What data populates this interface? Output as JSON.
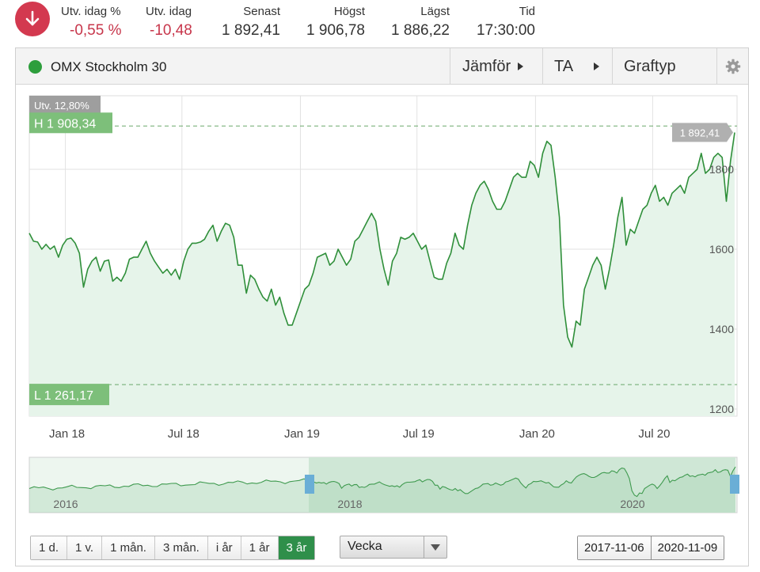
{
  "summary": {
    "change_pct_label": "Utv. idag %",
    "change_pct_value": "-0,55 %",
    "change_label": "Utv. idag",
    "change_value": "-10,48",
    "last_label": "Senast",
    "last_value": "1 892,41",
    "high_label": "Högst",
    "high_value": "1 906,78",
    "low_label": "Lägst",
    "low_value": "1 886,22",
    "time_label": "Tid",
    "time_value": "17:30:00",
    "colors": {
      "negative": "#c7364b",
      "badge": "#d3394f"
    },
    "icon": "arrow-down-icon"
  },
  "panel": {
    "instrument": "OMX Stockholm 30",
    "compare_label": "Jämför",
    "ta_label": "TA",
    "charttype_label": "Graftyp",
    "settings_icon": "gear-icon"
  },
  "chart_data": {
    "type": "area",
    "x_start": "2017-11-06",
    "x_end": "2020-11-09",
    "x_tick_labels": [
      "Jan 18",
      "Jul 18",
      "Jan 19",
      "Jul 19",
      "Jan 20",
      "Jul 20"
    ],
    "y_tick_labels": [
      "1800",
      "1600",
      "1400",
      "1200"
    ],
    "y_ticks": [
      1800,
      1600,
      1400,
      1200
    ],
    "ylim": [
      1200,
      2000
    ],
    "grid": true,
    "change_badge": "Utv. 12,80%",
    "high_line": {
      "value": 1908.34,
      "label": "H 1 908,34"
    },
    "low_line": {
      "value": 1261.17,
      "label": "L 1 261,17"
    },
    "last_badge": {
      "value": 1892.41,
      "label": "1 892,41"
    },
    "colors": {
      "line": "#2f8f3a",
      "fill": "#e6f4ea",
      "badge_green": "#7dbf7a",
      "badge_gray": "#b0b0b0"
    },
    "series": [
      {
        "values": [
          1640,
          1620,
          1618,
          1600,
          1612,
          1600,
          1608,
          1580,
          1610,
          1625,
          1628,
          1615,
          1590,
          1505,
          1550,
          1570,
          1580,
          1545,
          1570,
          1573,
          1520,
          1530,
          1520,
          1540,
          1575,
          1580,
          1580,
          1600,
          1620,
          1590,
          1570,
          1555,
          1540,
          1550,
          1535,
          1550,
          1525,
          1570,
          1600,
          1615,
          1615,
          1618,
          1625,
          1645,
          1660,
          1620,
          1645,
          1665,
          1660,
          1630,
          1560,
          1560,
          1490,
          1535,
          1525,
          1500,
          1480,
          1470,
          1500,
          1460,
          1480,
          1440,
          1410,
          1410,
          1440,
          1470,
          1500,
          1510,
          1540,
          1580,
          1585,
          1590,
          1560,
          1570,
          1600,
          1580,
          1560,
          1575,
          1620,
          1630,
          1650,
          1670,
          1690,
          1670,
          1600,
          1550,
          1510,
          1570,
          1590,
          1630,
          1625,
          1630,
          1640,
          1620,
          1600,
          1610,
          1570,
          1530,
          1525,
          1525,
          1565,
          1590,
          1640,
          1610,
          1600,
          1660,
          1710,
          1740,
          1760,
          1770,
          1750,
          1720,
          1700,
          1700,
          1720,
          1750,
          1780,
          1790,
          1780,
          1780,
          1820,
          1810,
          1780,
          1840,
          1870,
          1860,
          1780,
          1680,
          1460,
          1380,
          1355,
          1420,
          1410,
          1500,
          1530,
          1560,
          1580,
          1560,
          1500,
          1550,
          1610,
          1680,
          1730,
          1610,
          1650,
          1640,
          1670,
          1700,
          1710,
          1740,
          1760,
          1720,
          1730,
          1710,
          1740,
          1750,
          1760,
          1740,
          1780,
          1790,
          1800,
          1840,
          1790,
          1800,
          1830,
          1840,
          1830,
          1720,
          1820,
          1892
        ]
      }
    ]
  },
  "navigator": {
    "labels": [
      "2016",
      "2018",
      "2020"
    ]
  },
  "controls": {
    "periods": [
      "1 d.",
      "1 v.",
      "1 mån.",
      "3 mån.",
      "i år",
      "1 år",
      "3 år"
    ],
    "active_period": "3 år",
    "interval_value": "Vecka",
    "date_from": "2017-11-06",
    "date_to": "2020-11-09"
  }
}
